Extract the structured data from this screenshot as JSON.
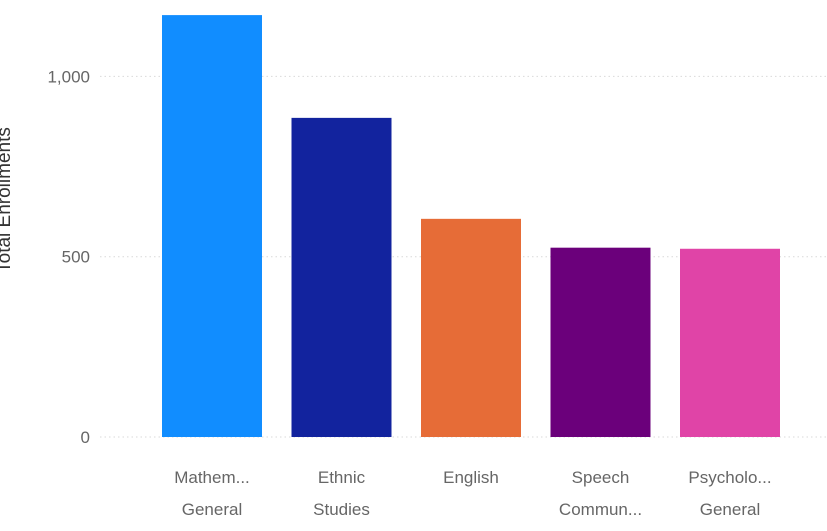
{
  "chart_data": {
    "type": "bar",
    "title": "",
    "xlabel": "",
    "ylabel": "Total Enrollments",
    "ylim": [
      0,
      1200
    ],
    "yticks": [
      0,
      500,
      1000
    ],
    "ytick_labels": [
      "0",
      "500",
      "1,000"
    ],
    "grid": true,
    "categories": [
      [
        "Mathem...",
        "General"
      ],
      [
        "Ethnic",
        "Studies"
      ],
      [
        "English"
      ],
      [
        "Speech",
        "Commun..."
      ],
      [
        "Psycholo...",
        "General"
      ]
    ],
    "values": [
      1170,
      885,
      605,
      525,
      522
    ],
    "colors": [
      "#118DFF",
      "#12239E",
      "#E66C37",
      "#6B007B",
      "#E044A7"
    ]
  }
}
